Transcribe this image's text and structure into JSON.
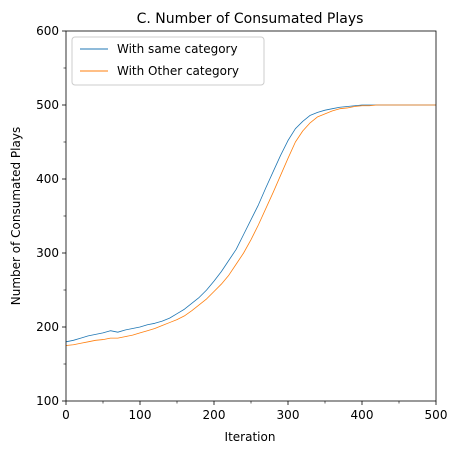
{
  "chart_data": {
    "type": "line",
    "title": "C. Number of Consumated Plays",
    "xlabel": "Iteration",
    "ylabel": "Number of Consumated Plays",
    "xlim": [
      0,
      500
    ],
    "ylim": [
      100,
      600
    ],
    "xticks": [
      0,
      100,
      200,
      300,
      400,
      500
    ],
    "yticks": [
      100,
      200,
      300,
      400,
      500,
      600
    ],
    "grid": false,
    "legend_position": "top-left",
    "series": [
      {
        "name": "With same category",
        "color": "#1f77b4",
        "x": [
          0,
          10,
          20,
          30,
          40,
          50,
          60,
          70,
          80,
          90,
          100,
          110,
          120,
          130,
          140,
          150,
          160,
          170,
          180,
          190,
          200,
          210,
          220,
          230,
          240,
          250,
          260,
          270,
          280,
          290,
          300,
          310,
          320,
          330,
          340,
          350,
          360,
          370,
          380,
          390,
          400,
          410,
          420,
          430,
          440,
          450,
          460,
          470,
          480,
          490,
          500
        ],
        "y": [
          180,
          182,
          185,
          188,
          190,
          192,
          195,
          193,
          196,
          198,
          200,
          203,
          205,
          208,
          212,
          218,
          224,
          232,
          240,
          250,
          262,
          275,
          290,
          305,
          325,
          345,
          365,
          388,
          410,
          432,
          452,
          468,
          478,
          486,
          490,
          493,
          495,
          497,
          498,
          499,
          500,
          500,
          500,
          500,
          500,
          500,
          500,
          500,
          500,
          500,
          500
        ]
      },
      {
        "name": "With Other category",
        "color": "#ff7f0e",
        "x": [
          0,
          10,
          20,
          30,
          40,
          50,
          60,
          70,
          80,
          90,
          100,
          110,
          120,
          130,
          140,
          150,
          160,
          170,
          180,
          190,
          200,
          210,
          220,
          230,
          240,
          250,
          260,
          270,
          280,
          290,
          300,
          310,
          320,
          330,
          340,
          350,
          360,
          370,
          380,
          390,
          400,
          410,
          420,
          430,
          440,
          450,
          460,
          470,
          480,
          490,
          500
        ],
        "y": [
          175,
          176,
          178,
          180,
          182,
          183,
          185,
          185,
          187,
          189,
          192,
          195,
          198,
          202,
          206,
          210,
          215,
          222,
          230,
          238,
          248,
          258,
          270,
          285,
          300,
          318,
          338,
          360,
          382,
          405,
          428,
          450,
          465,
          476,
          484,
          488,
          492,
          495,
          496,
          498,
          499,
          499,
          500,
          500,
          500,
          500,
          500,
          500,
          500,
          500,
          500
        ]
      }
    ]
  }
}
